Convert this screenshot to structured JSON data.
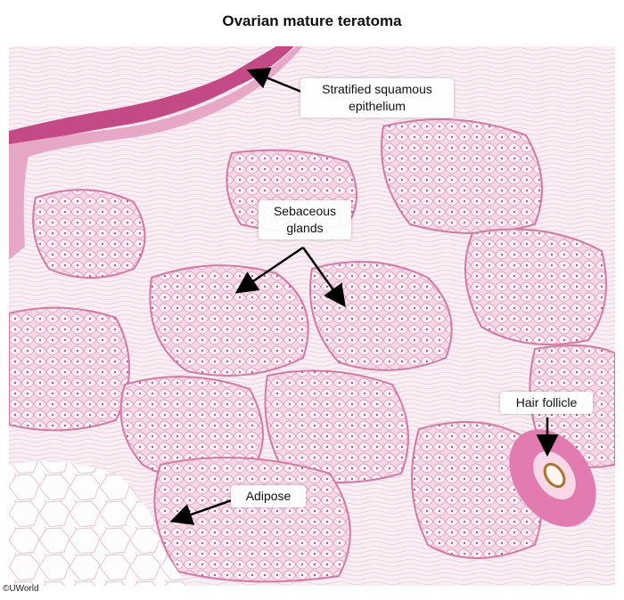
{
  "title": "Ovarian mature teratoma",
  "labels": {
    "epithelium": "Stratified squamous epithelium",
    "sebaceous": "Sebaceous glands",
    "hair_follicle": "Hair follicle",
    "adipose": "Adipose"
  },
  "copyright": "©UWorld",
  "colors": {
    "stroma": "#f6e7ef",
    "epithelium": "#c0407f",
    "gland": "#f3d2e2",
    "adipose": "#fdfbfc"
  }
}
